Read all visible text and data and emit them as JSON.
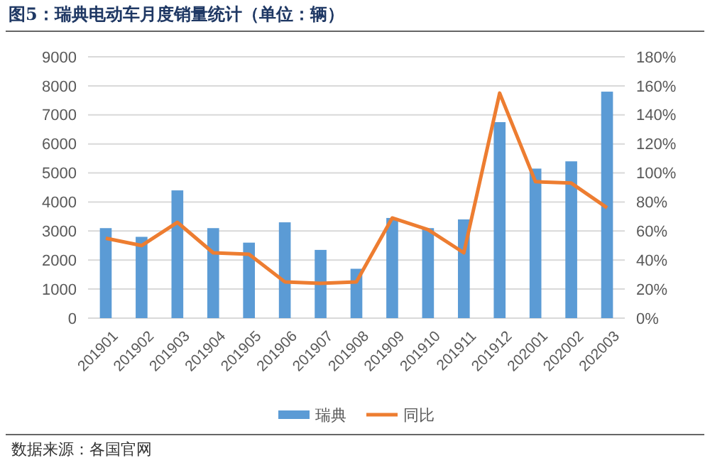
{
  "chart_data": {
    "type": "bar",
    "title": "图5：瑞典电动车月度销量统计（单位：辆）",
    "categories": [
      "201901",
      "201902",
      "201903",
      "201904",
      "201905",
      "201906",
      "201907",
      "201908",
      "201909",
      "201910",
      "201911",
      "201912",
      "202001",
      "202002",
      "202003"
    ],
    "series": [
      {
        "name": "瑞典",
        "color": "#5b9bd5",
        "values": [
          3100,
          2800,
          4400,
          3100,
          2600,
          3300,
          2350,
          1700,
          3450,
          3100,
          3400,
          6750,
          5150,
          5400,
          7800
        ]
      },
      {
        "name": "同比",
        "type": "line",
        "axis": "y2",
        "color": "#ed7d31",
        "values": [
          55,
          50,
          66,
          45,
          44,
          25,
          24,
          25,
          69,
          61,
          45,
          155,
          94,
          93,
          76
        ]
      }
    ],
    "ylim": [
      0,
      9000
    ],
    "yticks": [
      0,
      1000,
      2000,
      3000,
      4000,
      5000,
      6000,
      7000,
      8000,
      9000
    ],
    "y2lim": [
      0,
      180
    ],
    "y2ticks": [
      {
        "value": 0,
        "label": "0%"
      },
      {
        "value": 20,
        "label": "20%"
      },
      {
        "value": 40,
        "label": "40%"
      },
      {
        "value": 60,
        "label": "60%"
      },
      {
        "value": 80,
        "label": "80%"
      },
      {
        "value": 100,
        "label": "100%"
      },
      {
        "value": 120,
        "label": "120%"
      },
      {
        "value": 140,
        "label": "140%"
      },
      {
        "value": 160,
        "label": "160%"
      },
      {
        "value": 180,
        "label": "180%"
      }
    ],
    "grid": "y",
    "legend": "bottom",
    "marker": "none",
    "annotations": [
      "数据来源：各国官网"
    ]
  }
}
